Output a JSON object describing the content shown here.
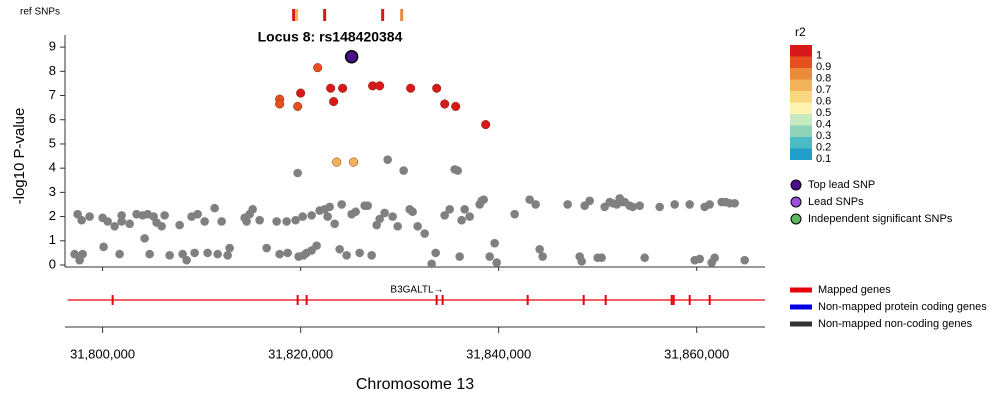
{
  "chart_data": {
    "type": "scatter",
    "title": "Locus 8: rs148420384",
    "xlabel": "Chromosome 13",
    "ylabel": "-log10 P-value",
    "xlim": [
      31796200,
      31866900
    ],
    "ylim": [
      0,
      9.5
    ],
    "xticks": [
      {
        "value": 31800000,
        "label": "31,800,000"
      },
      {
        "value": 31820000,
        "label": "31,820,000"
      },
      {
        "value": 31840000,
        "label": "31,840,000"
      },
      {
        "value": 31860000,
        "label": "31,860,000"
      }
    ],
    "yticks": [
      0,
      1,
      2,
      3,
      4,
      5,
      6,
      7,
      8,
      9
    ],
    "series": [
      {
        "color": "#808080",
        "x": [
          31797170,
          31797475,
          31797677,
          31797879,
          31797980,
          31798687,
          31800000,
          31800101,
          31800505,
          31801212,
          31801717,
          31801919,
          31801919,
          31802727,
          31803434,
          31804040,
          31804242,
          31804545,
          31804747,
          31805152,
          31805455,
          31805960,
          31806263,
          31806768,
          31807778,
          31808081,
          31808485,
          31808990,
          31809293,
          31809596,
          31810303,
          31810606,
          31811313,
          31811616,
          31812020,
          31812626,
          31812828,
          31814343,
          31814545,
          31814848,
          31815152,
          31815859,
          31816566,
          31817576,
          31817879,
          31818586,
          31818687,
          31819495,
          31819697,
          31819798,
          31820202,
          31820303,
          31820606,
          31821111,
          31821111,
          31821616,
          31821919,
          31822424,
          31822727,
          31822929,
          31823434,
          31823939,
          31824141,
          31824646,
          31825152,
          31825556,
          31825960,
          31826465,
          31826768,
          31827172,
          31827677,
          31827980,
          31828485,
          31828788,
          31829293,
          31829798,
          31830404,
          31831010,
          31831313,
          31831818,
          31832525,
          31833232,
          31833636,
          31834545,
          31835051,
          31835556,
          31835859,
          31836061,
          31836263,
          31836566,
          31837071,
          31838081,
          31838283,
          31838485,
          31839091,
          31839596,
          31839798,
          31841616,
          31843131,
          31843737,
          31844141,
          31844444,
          31846970,
          31848182,
          31848384,
          31848687,
          31849192,
          31850000,
          31850404,
          31850707,
          31851212,
          31851515,
          31851919,
          31852222,
          31852424,
          31852727,
          31853232,
          31853535,
          31854242,
          31854747,
          31856263,
          31857778,
          31859293,
          31859798,
          31860303,
          31860808,
          31861313,
          31861515,
          31861818,
          31862525,
          31862929,
          31863333,
          31863838,
          31864848
        ],
        "values": [
          0.45,
          2.1,
          0.2,
          1.85,
          0.45,
          2.0,
          1.95,
          0.75,
          1.8,
          1.6,
          0.45,
          2.05,
          1.8,
          1.7,
          2.1,
          2.05,
          1.1,
          2.1,
          0.45,
          2.0,
          1.75,
          1.6,
          2.05,
          0.4,
          1.65,
          0.45,
          0.2,
          2.0,
          0.5,
          2.1,
          1.8,
          0.5,
          2.35,
          0.45,
          1.8,
          0.4,
          0.7,
          1.95,
          1.8,
          2.1,
          2.3,
          1.85,
          0.7,
          1.8,
          0.45,
          1.8,
          0.5,
          1.85,
          3.8,
          0.35,
          2.0,
          0.4,
          0.5,
          2.05,
          0.6,
          0.8,
          2.25,
          2.3,
          2.0,
          2.4,
          1.7,
          0.65,
          2.5,
          0.4,
          2.1,
          2.2,
          0.5,
          2.45,
          2.45,
          0.4,
          1.65,
          1.9,
          2.15,
          4.35,
          2.0,
          1.6,
          3.9,
          2.3,
          2.2,
          1.6,
          1.3,
          0.05,
          0.5,
          2.05,
          2.3,
          3.95,
          3.9,
          0.35,
          1.85,
          2.3,
          2.0,
          2.5,
          2.65,
          2.7,
          0.35,
          0.9,
          0.1,
          2.1,
          2.7,
          2.5,
          0.65,
          0.35,
          2.5,
          0.35,
          0.15,
          2.45,
          2.65,
          0.3,
          0.3,
          2.4,
          2.6,
          2.55,
          2.5,
          2.75,
          2.6,
          2.6,
          2.45,
          2.4,
          2.45,
          0.3,
          2.4,
          2.5,
          2.5,
          0.2,
          0.25,
          2.4,
          2.5,
          0.1,
          0.3,
          2.6,
          2.6,
          2.55,
          2.55,
          0.2
        ]
      },
      {
        "color": "#f2b35a",
        "x": [
          31823640,
          31825350
        ],
        "values": [
          4.25,
          4.25
        ]
      },
      {
        "color": "#e6501e",
        "x": [
          31817880,
          31817880,
          31819700,
          31821720
        ],
        "values": [
          6.85,
          6.65,
          6.55,
          8.15
        ]
      },
      {
        "color": "#d7191c",
        "x": [
          31820000,
          31823030,
          31823330,
          31824240,
          31827270,
          31827980,
          31831110,
          31833740,
          31834550,
          31835660,
          31838690
        ],
        "values": [
          7.1,
          7.3,
          6.75,
          7.3,
          7.4,
          7.4,
          7.3,
          7.3,
          6.65,
          6.55,
          5.8
        ]
      },
      {
        "color": "#4b0f8a",
        "x": [
          31825150
        ],
        "values": [
          8.6
        ]
      }
    ],
    "r2_legend": {
      "title": "r2",
      "labels": [
        1,
        0.9,
        0.8,
        0.7,
        0.6,
        0.5,
        0.4,
        0.3,
        0.2,
        0.1
      ],
      "colors": [
        "#d7191c",
        "#e6501e",
        "#ec8a3c",
        "#f2b35a",
        "#f8d77f",
        "#fff3b0",
        "#c7e9c0",
        "#8fd3b8",
        "#4bbcc4",
        "#1f9fc9"
      ]
    },
    "marker_legend": [
      {
        "label": "Top lead SNP",
        "color": "#4b0f8a"
      },
      {
        "label": "Lead SNPs",
        "color": "#9a4fe0"
      },
      {
        "label": "Independent significant SNPs",
        "color": "#5cb85c"
      }
    ],
    "ref_snps": {
      "label": "ref SNPs",
      "x": [
        31819293,
        31819596,
        31822424,
        31828283,
        31830202
      ],
      "colors": [
        "#d7191c",
        "#f2b35a",
        "#d7191c",
        "#d7191c",
        "#ec8a3c"
      ]
    },
    "genes": [
      {
        "name": "B3GALTL→",
        "start": 31796460,
        "end": 31866900,
        "color": "#e8000b",
        "exons": [
          31801010,
          31819697,
          31820606,
          31833737,
          31834343,
          31842929,
          31848586,
          31850808,
          31857475,
          31857677,
          31859293,
          31861313
        ]
      }
    ],
    "gene_legend": [
      {
        "label": "Mapped genes",
        "color": "#e8000b"
      },
      {
        "label": "Non-mapped protein coding genes",
        "color": "#0000e0"
      },
      {
        "label": "Non-mapped non-coding genes",
        "color": "#333333"
      }
    ]
  }
}
